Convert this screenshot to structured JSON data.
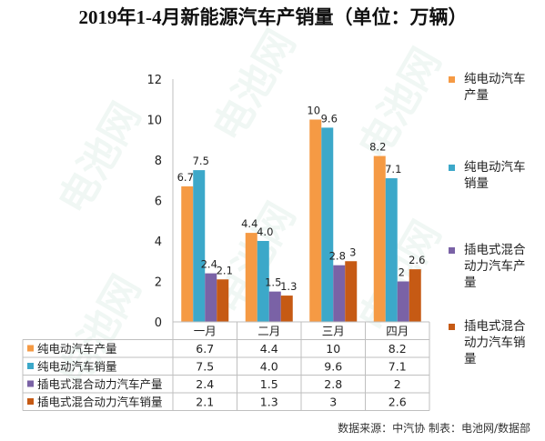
{
  "title": "2019年1-4月新能源汽车产销量（单位：万辆）",
  "source_note": "数据来源：中汽协  制表：电池网/数据部",
  "watermark_text": "电池网",
  "chart_data": {
    "type": "bar",
    "categories": [
      "一月",
      "二月",
      "三月",
      "四月"
    ],
    "ylim": [
      0,
      12
    ],
    "yticks": [
      0,
      2,
      4,
      6,
      8,
      10,
      12
    ],
    "grid": false,
    "legend_position": "right",
    "series": [
      {
        "name": "纯电动汽车产量",
        "color": "#F59A44",
        "values": [
          6.7,
          4.4,
          10,
          8.2
        ],
        "labels": [
          "6.7",
          "4.4",
          "10",
          "8.2"
        ]
      },
      {
        "name": "纯电动汽车销量",
        "color": "#3CA8C9",
        "values": [
          7.5,
          4.0,
          9.6,
          7.1
        ],
        "labels": [
          "7.5",
          "4.0",
          "9.6",
          "7.1"
        ]
      },
      {
        "name": "插电式混合动力汽车产量",
        "color": "#7A62A6",
        "values": [
          2.4,
          1.5,
          2.8,
          2
        ],
        "labels": [
          "2.4",
          "1.5",
          "2.8",
          "2"
        ]
      },
      {
        "name": "插电式混合动力汽车销量",
        "color": "#C65A14",
        "values": [
          2.1,
          1.3,
          3,
          2.6
        ],
        "labels": [
          "2.1",
          "1.3",
          "3",
          "2.6"
        ]
      }
    ]
  }
}
